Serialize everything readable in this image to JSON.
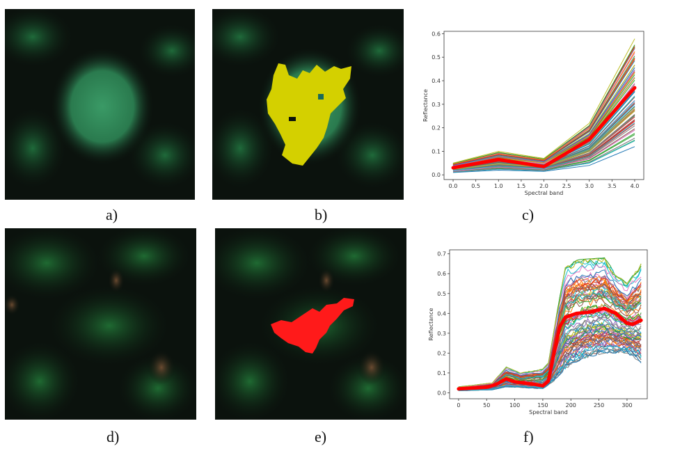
{
  "panels": {
    "a": {
      "label": "a)"
    },
    "b": {
      "label": "b)",
      "mask_color": "#d4d000"
    },
    "c": {
      "label": "c)"
    },
    "d": {
      "label": "d)"
    },
    "e": {
      "label": "e)",
      "mask_color": "#ff1a1a"
    },
    "f": {
      "label": "f)"
    }
  },
  "chart_data": [
    {
      "panel": "c",
      "type": "line",
      "xlabel": "Spectral band",
      "ylabel": "Reflectance",
      "xlim": [
        -0.2,
        4.2
      ],
      "ylim": [
        -0.02,
        0.61
      ],
      "xticks": [
        "0.0",
        "0.5",
        "1.0",
        "1.5",
        "2.0",
        "2.5",
        "3.0",
        "3.5",
        "4.0"
      ],
      "yticks": [
        "0.0",
        "0.1",
        "0.2",
        "0.3",
        "0.4",
        "0.5",
        "0.6"
      ],
      "grid": false,
      "mean_color": "#ff0000",
      "mean_series": {
        "x": [
          0,
          1,
          2,
          3,
          4
        ],
        "y": [
          0.03,
          0.065,
          0.035,
          0.15,
          0.37
        ]
      },
      "upper_envelope": {
        "x": [
          0,
          1,
          2,
          3,
          4
        ],
        "y": [
          0.05,
          0.1,
          0.07,
          0.22,
          0.58
        ]
      },
      "lower_envelope": {
        "x": [
          0,
          1,
          2,
          3,
          4
        ],
        "y": [
          0.01,
          0.02,
          0.015,
          0.04,
          0.12
        ]
      }
    },
    {
      "panel": "f",
      "type": "line",
      "xlabel": "Spectral band",
      "ylabel": "Reflectance",
      "xlim": [
        -16,
        336
      ],
      "ylim": [
        -0.03,
        0.72
      ],
      "xticks": [
        "0",
        "50",
        "100",
        "150",
        "200",
        "250",
        "300"
      ],
      "yticks": [
        "0.0",
        "0.1",
        "0.2",
        "0.3",
        "0.4",
        "0.5",
        "0.6",
        "0.7"
      ],
      "grid": false,
      "mean_color": "#ff0000",
      "mean_series": {
        "x": [
          0,
          50,
          65,
          85,
          100,
          130,
          150,
          160,
          170,
          180,
          190,
          210,
          230,
          260,
          280,
          300,
          310,
          325
        ],
        "y": [
          0.02,
          0.028,
          0.04,
          0.07,
          0.055,
          0.045,
          0.035,
          0.06,
          0.2,
          0.33,
          0.38,
          0.4,
          0.405,
          0.425,
          0.4,
          0.35,
          0.345,
          0.365
        ]
      },
      "upper_envelope": {
        "x": [
          0,
          60,
          85,
          110,
          150,
          160,
          175,
          190,
          210,
          260,
          280,
          300,
          325
        ],
        "y": [
          0.03,
          0.05,
          0.13,
          0.1,
          0.12,
          0.15,
          0.4,
          0.63,
          0.67,
          0.68,
          0.6,
          0.55,
          0.65
        ]
      },
      "lower_envelope": {
        "x": [
          0,
          60,
          85,
          150,
          170,
          190,
          220,
          260,
          300,
          325
        ],
        "y": [
          0.01,
          0.015,
          0.03,
          0.02,
          0.06,
          0.12,
          0.17,
          0.2,
          0.2,
          0.15
        ]
      }
    }
  ]
}
